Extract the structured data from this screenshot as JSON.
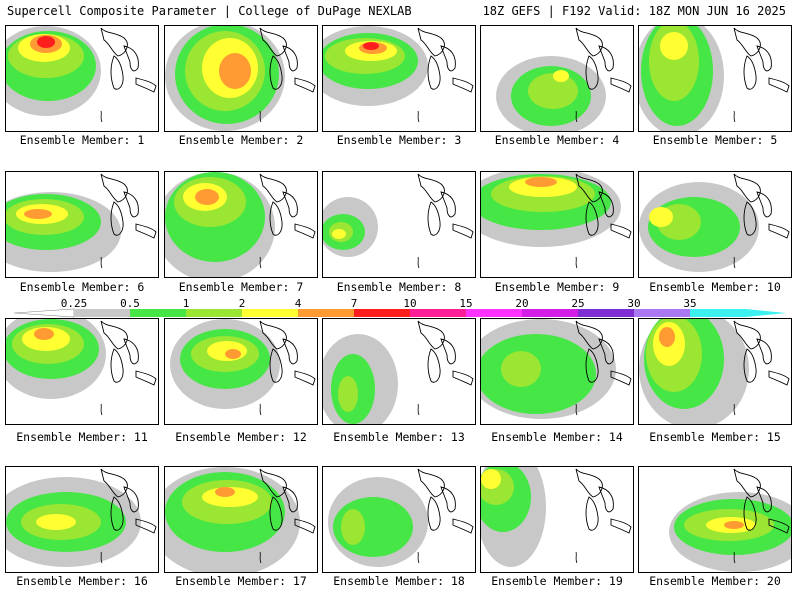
{
  "header": {
    "left": "Supercell Composite Parameter | College of DuPage NEXLAB",
    "right": "18Z GEFS | F192 Valid: 18Z MON JUN 16 2025"
  },
  "colorbar": {
    "labels": [
      "0.25",
      "0.5",
      "1",
      "2",
      "4",
      "7",
      "10",
      "15",
      "20",
      "25",
      "30",
      "35"
    ],
    "colors": [
      "#c8c8c8",
      "#46e646",
      "#9be632",
      "#ffff32",
      "#ff9b32",
      "#ff1e1e",
      "#ff1e96",
      "#ff32ff",
      "#d21ee6",
      "#7d2dd2",
      "#aa78f0",
      "#3cf0f0"
    ]
  },
  "members": [
    {
      "label": "Ensemble Member: 1"
    },
    {
      "label": "Ensemble Member: 2"
    },
    {
      "label": "Ensemble Member: 3"
    },
    {
      "label": "Ensemble Member: 4"
    },
    {
      "label": "Ensemble Member: 5"
    },
    {
      "label": "Ensemble Member: 6"
    },
    {
      "label": "Ensemble Member: 7"
    },
    {
      "label": "Ensemble Member: 8"
    },
    {
      "label": "Ensemble Member: 9"
    },
    {
      "label": "Ensemble Member: 10"
    },
    {
      "label": "Ensemble Member: 11"
    },
    {
      "label": "Ensemble Member: 12"
    },
    {
      "label": "Ensemble Member: 13"
    },
    {
      "label": "Ensemble Member: 14"
    },
    {
      "label": "Ensemble Member: 15"
    },
    {
      "label": "Ensemble Member: 16"
    },
    {
      "label": "Ensemble Member: 17"
    },
    {
      "label": "Ensemble Member: 18"
    },
    {
      "label": "Ensemble Member: 19"
    },
    {
      "label": "Ensemble Member: 20"
    }
  ]
}
